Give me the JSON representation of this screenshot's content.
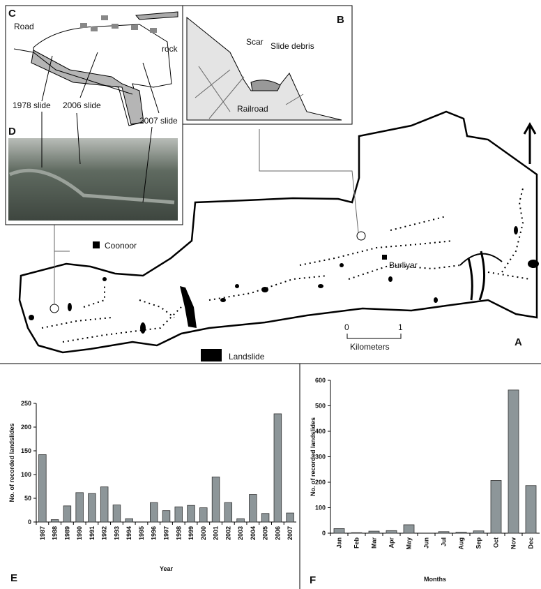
{
  "map": {
    "panel_c": "C",
    "panel_b": "B",
    "panel_d": "D",
    "panel_a": "A",
    "road": "Road",
    "rock": "rock",
    "slide_1978": "1978 slide",
    "slide_2006": "2006 slide",
    "slide_2007": "2007 slide",
    "scar": "Scar",
    "slide_debris": "Slide debris",
    "railroad": "Railroad",
    "coonoor": "Coonoor",
    "burliyar": "Burliyar",
    "scale_0": "0",
    "scale_1": "1",
    "scale_unit": "Kilometers",
    "legend_landslide": "Landslide"
  },
  "chart_data": [
    {
      "type": "bar",
      "label": "E",
      "xlabel": "Year",
      "ylabel": "No. of recorded landslides",
      "color": "#8d9699",
      "categories": [
        "1987",
        "1988",
        "1989",
        "1990",
        "1991",
        "1992",
        "1993",
        "1994",
        "1995",
        "1996",
        "1997",
        "1998",
        "1999",
        "2000",
        "2001",
        "2002",
        "2003",
        "2004",
        "2005",
        "2006",
        "2007"
      ],
      "values": [
        142,
        5,
        34,
        62,
        60,
        74,
        36,
        7,
        0,
        41,
        24,
        32,
        35,
        30,
        95,
        41,
        7,
        58,
        18,
        228,
        19
      ],
      "ylim": [
        0,
        250
      ],
      "yticks": [
        0,
        50,
        100,
        150,
        200,
        250
      ]
    },
    {
      "type": "bar",
      "label": "F",
      "xlabel": "Months",
      "ylabel": "No. of recorded landslides",
      "color": "#8d9699",
      "categories": [
        "Jan",
        "Feb",
        "Mar",
        "Apr",
        "May",
        "Jun",
        "Jul",
        "Aug",
        "Sep",
        "Oct",
        "Nov",
        "Dec"
      ],
      "values": [
        18,
        2,
        8,
        10,
        33,
        0,
        6,
        4,
        9,
        207,
        562,
        187
      ],
      "ylim": [
        0,
        600
      ],
      "yticks": [
        0,
        100,
        200,
        300,
        400,
        500,
        600
      ]
    }
  ]
}
